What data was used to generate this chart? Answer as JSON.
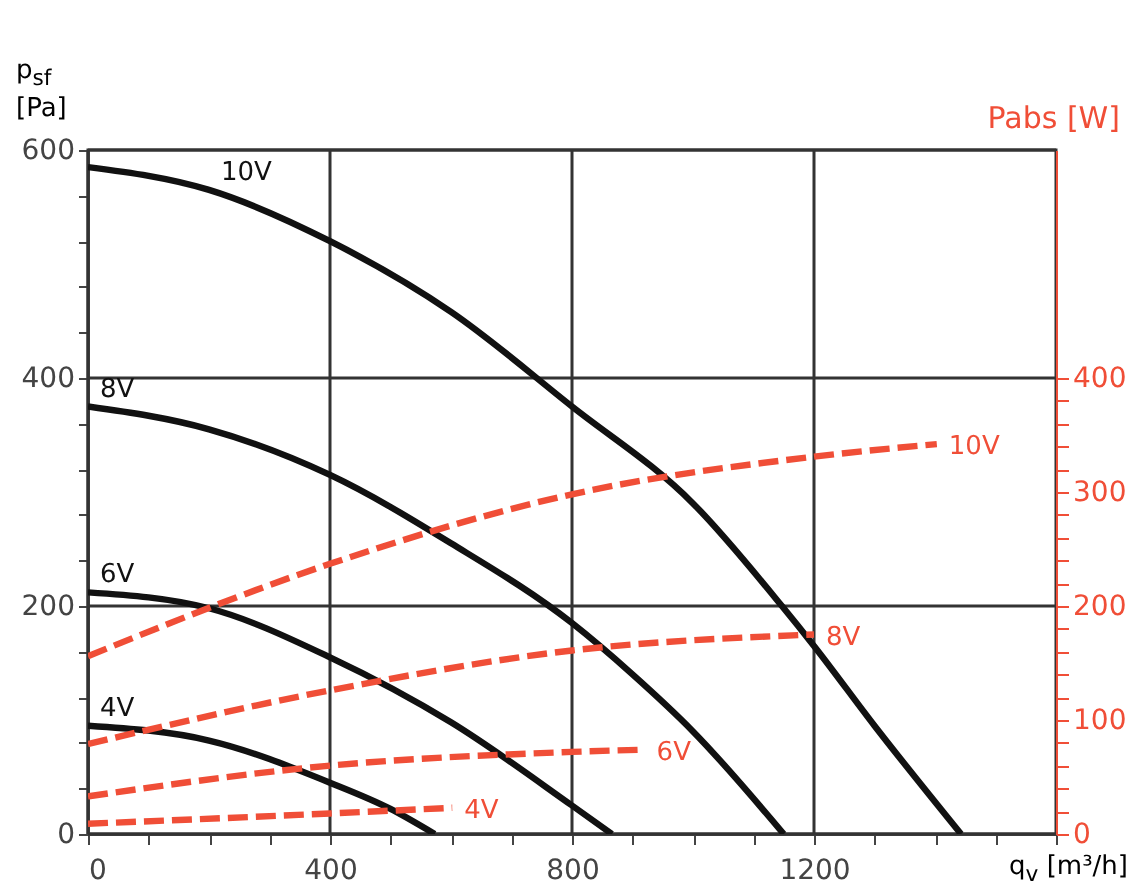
{
  "chart_data": {
    "type": "line",
    "xlabel": "q$_{v}$ [m³/h]",
    "ylabel": "p$_{sf}$ [Pa]",
    "y2label": "Pabs [W]",
    "xlim": [
      0,
      1600
    ],
    "ylim": [
      0,
      600
    ],
    "y2lim": [
      0,
      600
    ],
    "xticks": [
      0,
      {
        "value": 100,
        "label": null
      },
      {
        "value": 200,
        "label": null
      },
      {
        "value": 300,
        "label": null
      },
      400,
      {
        "value": 500,
        "label": null
      },
      {
        "value": 600,
        "label": null
      },
      {
        "value": 700,
        "label": null
      },
      800,
      {
        "value": 900,
        "label": null
      },
      {
        "value": 1000,
        "label": null
      },
      {
        "value": 1100,
        "label": null
      },
      1200,
      {
        "value": 1300,
        "label": null
      },
      {
        "value": 1400,
        "label": null
      },
      {
        "value": 1500,
        "label": null
      },
      {
        "value": 1600,
        "label": null
      }
    ],
    "yticks": [
      0,
      {
        "value": 40,
        "label": null
      },
      {
        "value": 80,
        "label": null
      },
      {
        "value": 120,
        "label": null
      },
      {
        "value": 160,
        "label": null
      },
      200,
      {
        "value": 240,
        "label": null
      },
      {
        "value": 280,
        "label": null
      },
      {
        "value": 320,
        "label": null
      },
      {
        "value": 360,
        "label": null
      },
      400,
      {
        "value": 440,
        "label": null
      },
      {
        "value": 480,
        "label": null
      },
      {
        "value": 520,
        "label": null
      },
      {
        "value": 560,
        "label": null
      },
      600
    ],
    "y2ticks": [
      0,
      {
        "value": 20,
        "label": null
      },
      {
        "value": 40,
        "label": null
      },
      {
        "value": 60,
        "label": null
      },
      {
        "value": 80,
        "label": null
      },
      100,
      {
        "value": 120,
        "label": null
      },
      {
        "value": 140,
        "label": null
      },
      {
        "value": 160,
        "label": null
      },
      {
        "value": 180,
        "label": null
      },
      200,
      {
        "value": 220,
        "label": null
      },
      {
        "value": 240,
        "label": null
      },
      {
        "value": 260,
        "label": null
      },
      {
        "value": 280,
        "label": null
      },
      300,
      {
        "value": 320,
        "label": null
      },
      {
        "value": 340,
        "label": null
      },
      {
        "value": 360,
        "label": null
      },
      {
        "value": 380,
        "label": null
      },
      400
    ],
    "grid": true,
    "series": [
      {
        "name": "10V",
        "color": "#111111",
        "line_style": "solid",
        "x": [
          0,
          200,
          400,
          600,
          800,
          1000,
          1147,
          1200,
          1300,
          1443
        ],
        "values": [
          585,
          565,
          520,
          458,
          375,
          290,
          200,
          165,
          95,
          0
        ]
      },
      {
        "name": "8V",
        "color": "#111111",
        "line_style": "solid",
        "x": [
          0,
          200,
          400,
          600,
          800,
          900,
          1000,
          1150
        ],
        "values": [
          375,
          355,
          315,
          255,
          185,
          140,
          90,
          0
        ]
      },
      {
        "name": "6V",
        "color": "#111111",
        "line_style": "solid",
        "x": [
          0,
          200,
          400,
          600,
          800,
          866
        ],
        "values": [
          212,
          198,
          155,
          98,
          25,
          0
        ]
      },
      {
        "name": "4V",
        "color": "#111111",
        "line_style": "solid",
        "x": [
          0,
          200,
          400,
          500,
          573
        ],
        "values": [
          95,
          82,
          45,
          22,
          0
        ]
      },
      {
        "name": "10V",
        "color": "#f04e37",
        "line_style": "dashed",
        "axis": "y2",
        "x": [
          0,
          400,
          800,
          1200,
          1403
        ],
        "values": [
          156,
          237,
          298,
          331,
          342
        ]
      },
      {
        "name": "8V",
        "color": "#f04e37",
        "line_style": "dashed",
        "axis": "y2",
        "x": [
          0,
          400,
          800,
          1200
        ],
        "values": [
          79,
          126,
          161,
          175
        ]
      },
      {
        "name": "6V",
        "color": "#f04e37",
        "line_style": "dashed",
        "axis": "y2",
        "x": [
          0,
          400,
          800,
          920
        ],
        "values": [
          33,
          60,
          72,
          74
        ]
      },
      {
        "name": "4V",
        "color": "#f04e37",
        "line_style": "dashed",
        "axis": "y2",
        "x": [
          0,
          400,
          602
        ],
        "values": [
          9,
          18,
          23
        ]
      }
    ]
  }
}
